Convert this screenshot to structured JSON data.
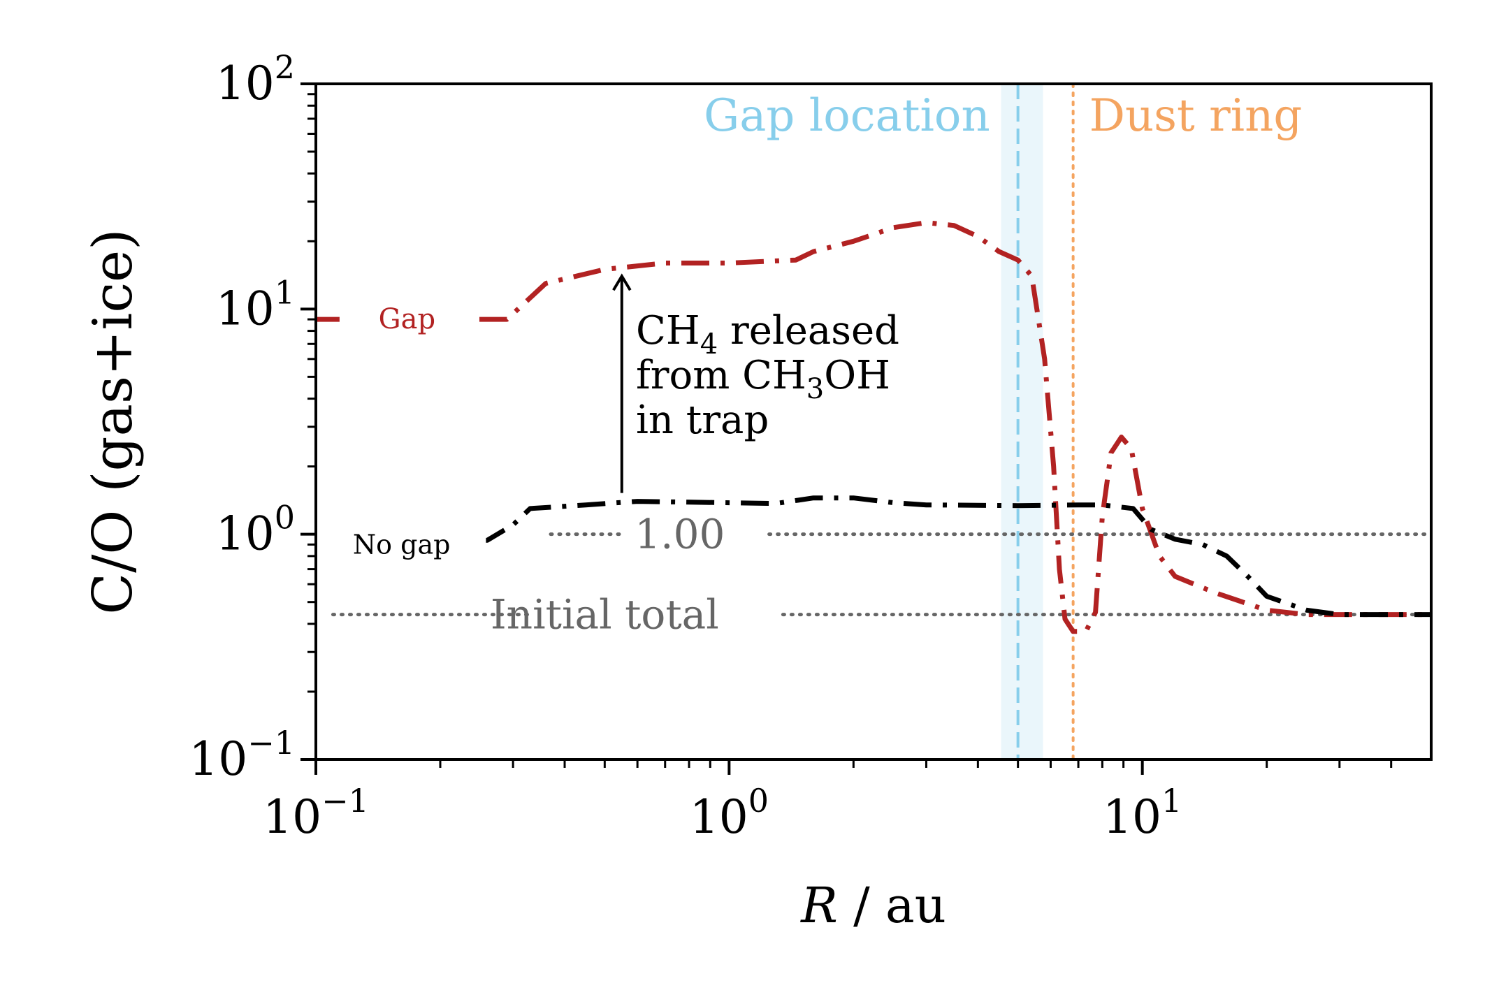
{
  "chart_data": {
    "type": "line",
    "xscale": "log",
    "yscale": "log",
    "xlim": [
      0.1,
      50
    ],
    "ylim": [
      0.1,
      100
    ],
    "xlabel_var": "R",
    "xlabel_sep": "/",
    "xlabel_unit": "au",
    "ylabel": "C/O (gas+ice)",
    "x_ticks": [
      {
        "value": 0.1,
        "base": "10",
        "exp": "−1"
      },
      {
        "value": 1,
        "base": "10",
        "exp": "0"
      },
      {
        "value": 10,
        "base": "10",
        "exp": "1"
      }
    ],
    "y_ticks": [
      {
        "value": 0.1,
        "base": "10",
        "exp": "−1"
      },
      {
        "value": 1,
        "base": "10",
        "exp": "0"
      },
      {
        "value": 10,
        "base": "10",
        "exp": "1"
      },
      {
        "value": 100,
        "base": "10",
        "exp": "2"
      }
    ],
    "series": [
      {
        "name": "Gap",
        "label": "Gap",
        "color": "#b22222",
        "style": "dashdot",
        "points": [
          [
            0.1,
            9.0
          ],
          [
            0.29,
            9.0
          ],
          [
            0.36,
            13.0
          ],
          [
            0.5,
            15.0
          ],
          [
            0.7,
            16.0
          ],
          [
            1.0,
            16.0
          ],
          [
            1.45,
            16.5
          ],
          [
            1.6,
            18.0
          ],
          [
            2.0,
            20.0
          ],
          [
            2.5,
            23.0
          ],
          [
            3.0,
            24.2
          ],
          [
            3.5,
            23.5
          ],
          [
            4.0,
            21.0
          ],
          [
            4.5,
            18.0
          ],
          [
            5.0,
            16.5
          ],
          [
            5.4,
            14.0
          ],
          [
            5.8,
            6.0
          ],
          [
            6.1,
            2.0
          ],
          [
            6.3,
            0.7
          ],
          [
            6.5,
            0.42
          ],
          [
            6.8,
            0.37
          ],
          [
            7.3,
            0.37
          ],
          [
            7.7,
            0.45
          ],
          [
            8.0,
            1.2
          ],
          [
            8.4,
            2.3
          ],
          [
            8.9,
            2.7
          ],
          [
            9.4,
            2.4
          ],
          [
            10.0,
            1.3
          ],
          [
            11.0,
            0.8
          ],
          [
            12.0,
            0.65
          ],
          [
            15.0,
            0.55
          ],
          [
            20.0,
            0.46
          ],
          [
            25.0,
            0.44
          ],
          [
            50.0,
            0.44
          ]
        ]
      },
      {
        "name": "No gap",
        "label": "No gap",
        "color": "#000000",
        "style": "dashdot",
        "points": [
          [
            0.1,
            0.9
          ],
          [
            0.26,
            0.94
          ],
          [
            0.3,
            1.1
          ],
          [
            0.33,
            1.3
          ],
          [
            0.45,
            1.35
          ],
          [
            0.6,
            1.4
          ],
          [
            1.0,
            1.38
          ],
          [
            1.3,
            1.37
          ],
          [
            1.6,
            1.45
          ],
          [
            2.0,
            1.45
          ],
          [
            2.5,
            1.38
          ],
          [
            3.0,
            1.35
          ],
          [
            5.0,
            1.34
          ],
          [
            7.0,
            1.35
          ],
          [
            8.0,
            1.35
          ],
          [
            9.5,
            1.3
          ],
          [
            10.5,
            1.05
          ],
          [
            12.0,
            0.95
          ],
          [
            14.0,
            0.9
          ],
          [
            16.0,
            0.8
          ],
          [
            18.0,
            0.65
          ],
          [
            20.0,
            0.53
          ],
          [
            25.0,
            0.46
          ],
          [
            30.0,
            0.44
          ],
          [
            50.0,
            0.44
          ]
        ]
      }
    ],
    "reference_lines": [
      {
        "name": "one",
        "value": 1.0,
        "label": "1.00",
        "color": "#666666",
        "style": "dotted"
      },
      {
        "name": "initial-total",
        "value": 0.44,
        "label": "Initial total",
        "color": "#666666",
        "style": "dotted"
      }
    ],
    "gap": {
      "location": 5.0,
      "band": [
        4.55,
        5.75
      ],
      "label": "Gap location",
      "color": "#87ceeb",
      "band_color": "#eaf6fb"
    },
    "dust_ring": {
      "location": 6.8,
      "label": "Dust ring",
      "color": "#f4a460"
    },
    "annotation": {
      "lines": [
        {
          "prefix": "CH",
          "sub": "4",
          "suffix": " released"
        },
        {
          "prefix": "from CH",
          "sub": "3",
          "suffix": "OH"
        },
        {
          "prefix": "in trap",
          "sub": "",
          "suffix": ""
        }
      ],
      "arrow_x": 0.55,
      "arrow_from_y": 1.4,
      "arrow_to_y": 14.0
    }
  }
}
